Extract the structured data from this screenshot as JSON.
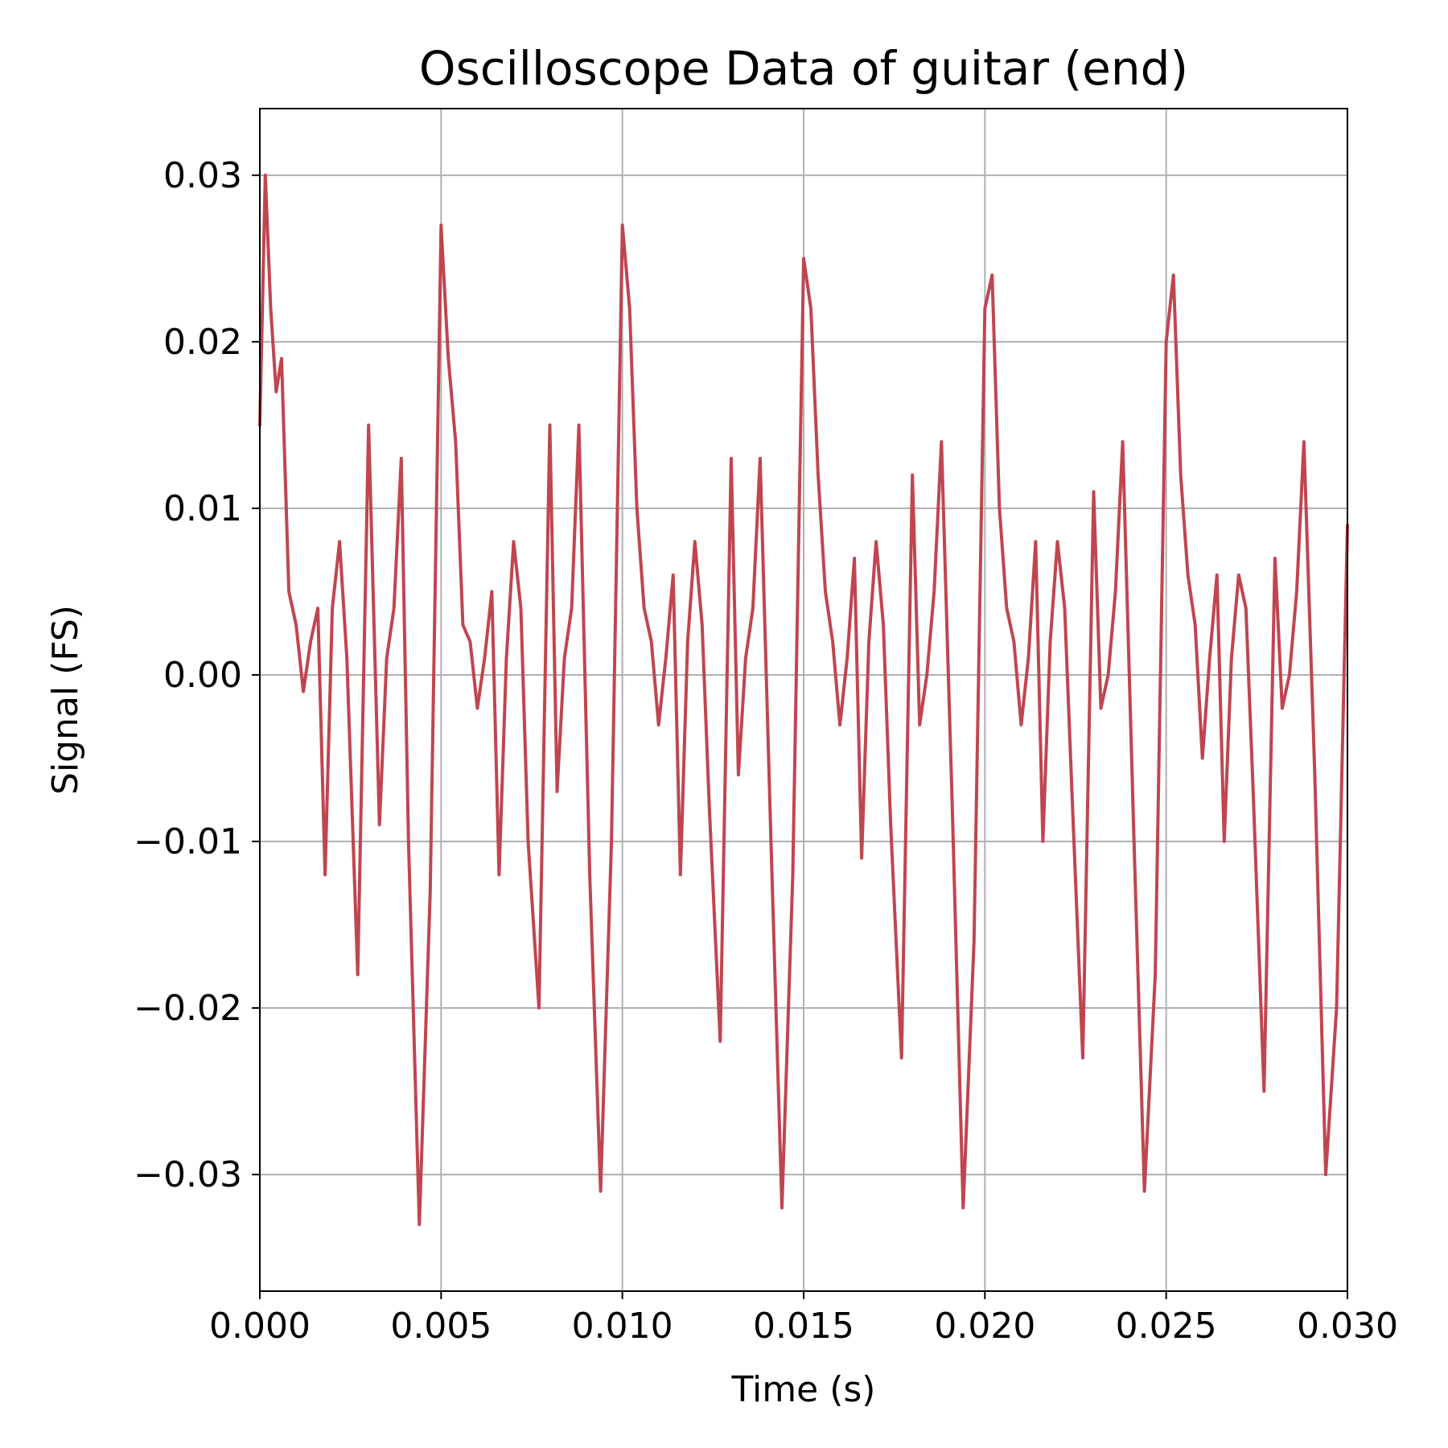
{
  "chart_data": {
    "type": "line",
    "title": "Oscilloscope Data of guitar (end)",
    "xlabel": "Time (s)",
    "ylabel": "Signal (FS)",
    "xlim": [
      0.0,
      0.03
    ],
    "ylim": [
      -0.037,
      0.034
    ],
    "x_ticks": [
      0.0,
      0.005,
      0.01,
      0.015,
      0.02,
      0.025,
      0.03
    ],
    "x_tick_labels": [
      "0.000",
      "0.005",
      "0.010",
      "0.015",
      "0.020",
      "0.025",
      "0.030"
    ],
    "y_ticks": [
      -0.03,
      -0.02,
      -0.01,
      0.0,
      0.01,
      0.02,
      0.03
    ],
    "y_tick_labels": [
      "−0.03",
      "−0.02",
      "−0.01",
      "0.00",
      "0.01",
      "0.02",
      "0.03"
    ],
    "grid": true,
    "color": "#c0454f",
    "series": [
      {
        "x": [
          0.0,
          0.00015,
          0.0003,
          0.00045,
          0.0006,
          0.0008,
          0.001,
          0.0012,
          0.0014,
          0.0016,
          0.0018,
          0.002,
          0.0022,
          0.0024,
          0.0027,
          0.003,
          0.0033,
          0.0035,
          0.0037,
          0.0039,
          0.0041,
          0.0044,
          0.0047,
          0.005,
          0.0052,
          0.0054,
          0.0056,
          0.0058,
          0.006,
          0.0062,
          0.0064,
          0.0066,
          0.0068,
          0.007,
          0.0072,
          0.0074,
          0.0077,
          0.008,
          0.0082,
          0.0084,
          0.0086,
          0.0088,
          0.0091,
          0.0094,
          0.0097,
          0.01,
          0.0102,
          0.0104,
          0.0106,
          0.0108,
          0.011,
          0.0112,
          0.0114,
          0.0116,
          0.0118,
          0.012,
          0.0122,
          0.0124,
          0.0127,
          0.013,
          0.0132,
          0.0134,
          0.0136,
          0.0138,
          0.0141,
          0.0144,
          0.0147,
          0.015,
          0.0152,
          0.0154,
          0.0156,
          0.0158,
          0.016,
          0.0162,
          0.0164,
          0.0166,
          0.0168,
          0.017,
          0.0172,
          0.0174,
          0.0177,
          0.018,
          0.0182,
          0.0184,
          0.0186,
          0.0188,
          0.0191,
          0.0194,
          0.0197,
          0.02,
          0.0202,
          0.0204,
          0.0206,
          0.0208,
          0.021,
          0.0212,
          0.0214,
          0.0216,
          0.0218,
          0.022,
          0.0222,
          0.0224,
          0.0227,
          0.023,
          0.0232,
          0.0234,
          0.0236,
          0.0238,
          0.0241,
          0.0244,
          0.0247,
          0.025,
          0.0252,
          0.0254,
          0.0256,
          0.0258,
          0.026,
          0.0262,
          0.0264,
          0.0266,
          0.0268,
          0.027,
          0.0272,
          0.0274,
          0.0277,
          0.028,
          0.0282,
          0.0284,
          0.0286,
          0.0288,
          0.0291,
          0.0294,
          0.0297,
          0.03
        ],
        "y": [
          0.015,
          0.03,
          0.022,
          0.017,
          0.019,
          0.005,
          0.003,
          -0.001,
          0.002,
          0.004,
          -0.012,
          0.004,
          0.008,
          0.001,
          -0.018,
          0.015,
          -0.009,
          0.001,
          0.004,
          0.013,
          -0.01,
          -0.033,
          -0.013,
          0.027,
          0.019,
          0.014,
          0.003,
          0.002,
          -0.002,
          0.001,
          0.005,
          -0.012,
          0.001,
          0.008,
          0.004,
          -0.01,
          -0.02,
          0.015,
          -0.007,
          0.001,
          0.004,
          0.015,
          -0.012,
          -0.031,
          -0.01,
          0.027,
          0.022,
          0.01,
          0.004,
          0.002,
          -0.003,
          0.001,
          0.006,
          -0.012,
          0.002,
          0.008,
          0.003,
          -0.008,
          -0.022,
          0.013,
          -0.006,
          0.001,
          0.004,
          0.013,
          -0.01,
          -0.032,
          -0.012,
          0.025,
          0.022,
          0.012,
          0.005,
          0.002,
          -0.003,
          0.001,
          0.007,
          -0.011,
          0.002,
          0.008,
          0.003,
          -0.009,
          -0.023,
          0.012,
          -0.003,
          0.0,
          0.005,
          0.014,
          -0.008,
          -0.032,
          -0.016,
          0.022,
          0.024,
          0.01,
          0.004,
          0.002,
          -0.003,
          0.001,
          0.008,
          -0.01,
          0.002,
          0.008,
          0.004,
          -0.007,
          -0.023,
          0.011,
          -0.002,
          0.0,
          0.005,
          0.014,
          -0.009,
          -0.031,
          -0.018,
          0.02,
          0.024,
          0.012,
          0.006,
          0.003,
          -0.005,
          0.001,
          0.006,
          -0.01,
          0.001,
          0.006,
          0.004,
          -0.007,
          -0.025,
          0.007,
          -0.002,
          0.0,
          0.005,
          0.014,
          -0.006,
          -0.03,
          -0.02,
          0.009
        ]
      }
    ]
  }
}
